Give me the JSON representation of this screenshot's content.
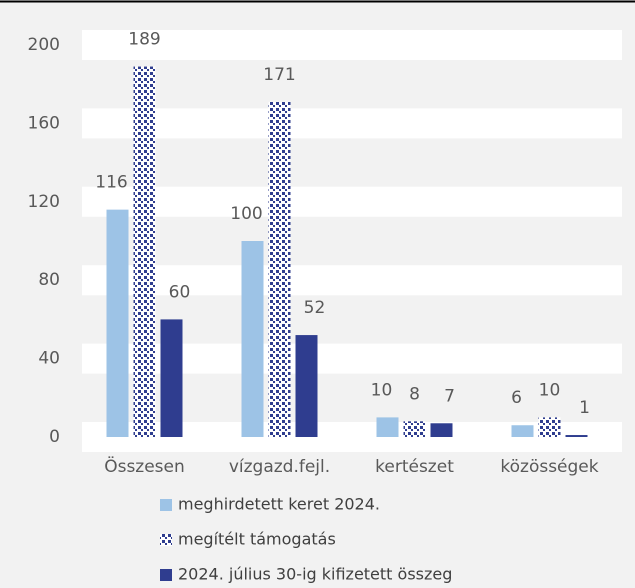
{
  "chart_data": {
    "type": "bar",
    "categories": [
      "Összesen",
      "vízgazd.fejl.",
      "kertészet",
      "közösségek"
    ],
    "series": [
      {
        "name": "meghirdetett keret 2024.",
        "color": "#9dc3e6",
        "values": [
          116,
          100,
          10,
          6
        ]
      },
      {
        "name": "megítélt támogatás",
        "color": "#2f3d8f",
        "pattern": "dots",
        "values": [
          189,
          171,
          8,
          10
        ]
      },
      {
        "name": "2024. július 30-ig kifizetett összeg",
        "color": "#2f3d8f",
        "values": [
          60,
          52,
          7,
          1
        ]
      }
    ],
    "ylim": [
      0,
      200
    ],
    "yticks": [
      0,
      40,
      80,
      120,
      160,
      200
    ],
    "grid": true,
    "legend": "bottom"
  }
}
